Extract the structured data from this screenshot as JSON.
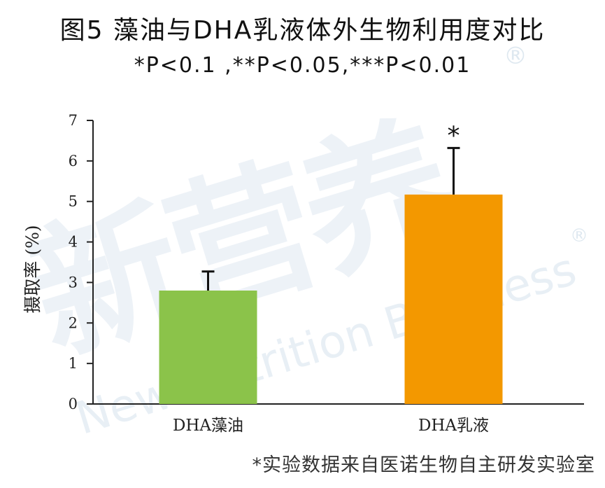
{
  "watermark": {
    "cn": "新营养",
    "en": "New Nutrition Business",
    "reg": "®"
  },
  "chart_data": {
    "type": "bar",
    "title": "图5 藻油与DHA乳液体外生物利用度对比",
    "subtitle": "*P<0.1 ,**P<0.05,***P<0.01",
    "categories": [
      "DHA藻油",
      "DHA乳液"
    ],
    "values": [
      2.8,
      5.17
    ],
    "error_upper": [
      0.47,
      1.15
    ],
    "significance": [
      "",
      "*"
    ],
    "bar_colors": [
      "#8bc34a",
      "#f39800"
    ],
    "xlabel": "",
    "ylabel": "摄取率 (%)",
    "ylim": [
      0,
      7
    ],
    "yticks": [
      "0",
      "1",
      "2",
      "3",
      "4",
      "5",
      "6",
      "7"
    ],
    "grid": false,
    "footnote": "*实验数据来自医诺生物自主研发实验室"
  }
}
